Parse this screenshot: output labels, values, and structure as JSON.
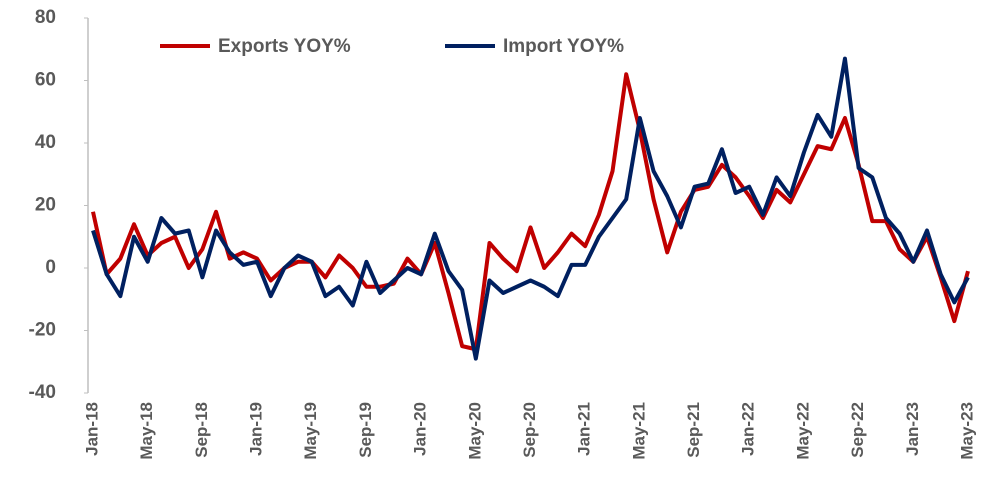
{
  "chart_data": {
    "type": "line",
    "categories": [
      "Jan-18",
      null,
      null,
      null,
      "May-18",
      null,
      null,
      null,
      "Sep-18",
      null,
      null,
      null,
      "Jan-19",
      null,
      null,
      null,
      "May-19",
      null,
      null,
      null,
      "Sep-19",
      null,
      null,
      null,
      "Jan-20",
      null,
      null,
      null,
      "May-20",
      null,
      null,
      null,
      "Sep-20",
      null,
      null,
      null,
      "Jan-21",
      null,
      null,
      null,
      "May-21",
      null,
      null,
      null,
      "Sep-21",
      null,
      null,
      null,
      "Jan-22",
      null,
      null,
      null,
      "May-22",
      null,
      null,
      null,
      "Sep-22",
      null,
      null,
      null,
      "Jan-23",
      null,
      null,
      null,
      "May-23"
    ],
    "series": [
      {
        "name": "Exports YOY%",
        "color": "#c00000",
        "values": [
          18,
          -2,
          3,
          14,
          4,
          8,
          10,
          0,
          6,
          18,
          3,
          5,
          3,
          -4,
          0,
          2,
          2,
          -3,
          4,
          0,
          -6,
          -6,
          -5,
          3,
          -2,
          8,
          -8,
          -25,
          -26,
          8,
          3,
          -1,
          13,
          0,
          5,
          11,
          7,
          17,
          31,
          62,
          44,
          22,
          5,
          18,
          25,
          26,
          33,
          29,
          23,
          16,
          25,
          21,
          30,
          39,
          38,
          48,
          33,
          15,
          15,
          6,
          2,
          10,
          -3,
          -17,
          -1
        ]
      },
      {
        "name": "Import YOY%",
        "color": "#002060",
        "values": [
          12,
          -2,
          -9,
          10,
          2,
          16,
          11,
          12,
          -3,
          12,
          5,
          1,
          2,
          -9,
          0,
          4,
          2,
          -9,
          -6,
          -12,
          2,
          -8,
          -4,
          0,
          -2,
          11,
          -1,
          -7,
          -29,
          -4,
          -8,
          -6,
          -4,
          -6,
          -9,
          1,
          1,
          10,
          16,
          22,
          48,
          31,
          23,
          13,
          26,
          27,
          38,
          24,
          26,
          17,
          29,
          23,
          37,
          49,
          42,
          67,
          32,
          29,
          16,
          11,
          2,
          12,
          -2,
          -11,
          -3
        ]
      }
    ],
    "ylim": [
      -40,
      80
    ],
    "yticks": [
      -40,
      -20,
      0,
      20,
      40,
      60,
      80
    ],
    "legend": "top"
  }
}
